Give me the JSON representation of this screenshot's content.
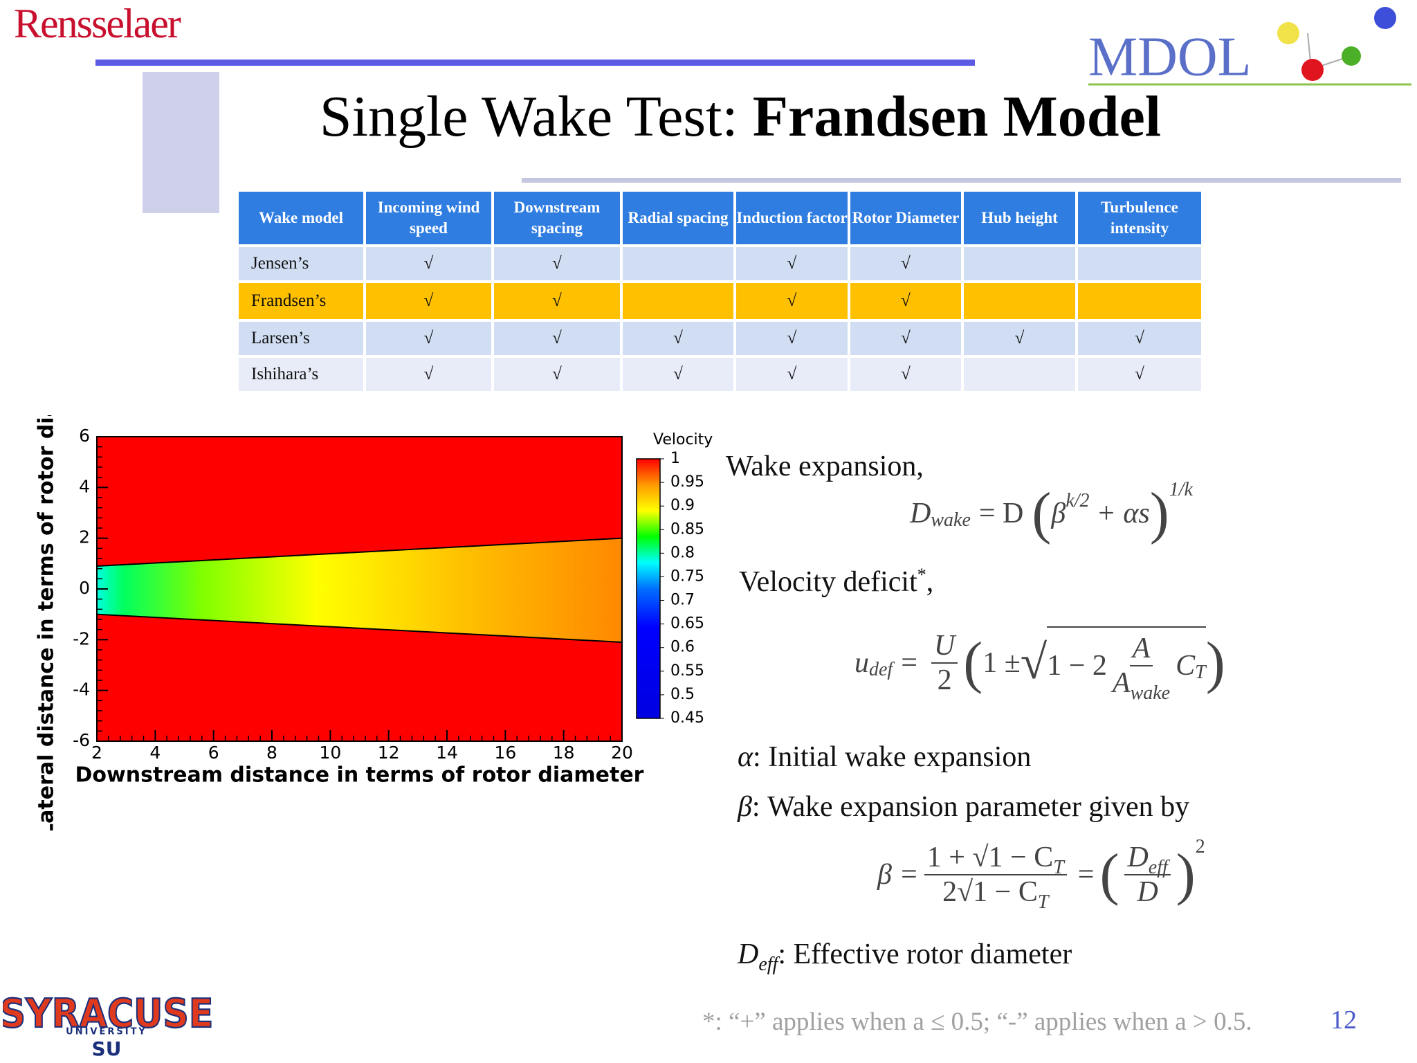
{
  "header": {
    "institution": "Rensselaer",
    "lab": "MDOL",
    "title_plain": "Single Wake Test: ",
    "title_bold": "Frandsen Model"
  },
  "table": {
    "header": [
      "Wake model",
      "Incoming wind speed",
      "Downstream spacing",
      "Radial spacing",
      "Induction factor",
      "Rotor Diameter",
      "Hub height",
      "Turbulence intensity"
    ],
    "rows": [
      [
        "Jensen’s",
        "√",
        "√",
        null,
        "√",
        "√",
        null,
        null
      ],
      [
        "Frandsen’s",
        "√",
        "√",
        null,
        "√",
        "√",
        null,
        null
      ],
      [
        "Larsen’s",
        "√",
        "√",
        "√",
        "√",
        "√",
        "√",
        "√"
      ],
      [
        "Ishihara’s",
        "√",
        "√",
        "√",
        "√",
        "√",
        null,
        "√"
      ]
    ]
  },
  "chart_data": {
    "type": "contour",
    "xlabel": "Downstream distance in terms of rotor diameter",
    "ylabel": "Lateral distance in terms of rotor diameter",
    "xlim": [
      2,
      20
    ],
    "xticks": [
      2,
      4,
      6,
      8,
      10,
      12,
      14,
      16,
      18,
      20
    ],
    "ylim": [
      -6,
      6
    ],
    "yticks": [
      6,
      4,
      2,
      0,
      -2,
      -4,
      -6
    ],
    "background_color": "#ff0000",
    "wake_boundary": {
      "x": [
        2,
        20
      ],
      "upper": [
        0.9,
        2.0
      ],
      "lower": [
        -1.0,
        -2.1
      ]
    },
    "colorbar": {
      "title": "Velocity",
      "lim": [
        0.45,
        1
      ],
      "ticks": [
        1,
        0.95,
        0.9,
        0.85,
        0.8,
        0.75,
        0.7,
        0.65,
        0.6,
        0.55,
        0.5,
        0.45
      ]
    }
  },
  "body": {
    "wake_expansion": "Wake expansion,",
    "velocity_deficit": "Velocity deficit",
    "velocity_deficit_mark": "*",
    "velocity_deficit_end": ",",
    "alpha_symbol": "α",
    "alpha_text": ": Initial wake expansion",
    "beta_symbol": "β",
    "beta_text": ": Wake expansion parameter given by",
    "deff_symbol": "D",
    "deff_sub": "eff",
    "deff_text": ": Effective rotor diameter"
  },
  "equations": [
    {
      "lhs": "D",
      "lhs_sub": "wake",
      "eq": "= D",
      "open": "(",
      "base": "β",
      "base_sup": "k/2",
      "rest": "+ αs",
      "close": ")",
      "power": "1/k"
    },
    {
      "lhs": "u",
      "lhs_sub": "def",
      "eq": "=",
      "num": "U",
      "den": "2",
      "open": "(",
      "one": "1 ±",
      "root": "√",
      "inner": "1 − 2",
      "fnum": "A",
      "fden": "A",
      "fden_sub": "wake",
      "ct": "C",
      "ct_sub": "T",
      "close": ")"
    },
    {
      "lhs": "β =",
      "num_a": "1 + √1 − C",
      "num_sub": "T",
      "den_a": "2√1 − C",
      "den_sub": "T",
      "eq": "=",
      "open": "(",
      "rnum": "D",
      "rnum_sub": "eff",
      "rden": "D",
      "close": ")",
      "power": "2"
    }
  ],
  "footer": {
    "logo_top": "SYRACUSE",
    "logo_mid": "UNIVERSITY",
    "logo_bottom": "SU",
    "footnote": "*: “+” applies when a ≤ 0.5; “-” applies when a > 0.5.",
    "page": "12"
  }
}
